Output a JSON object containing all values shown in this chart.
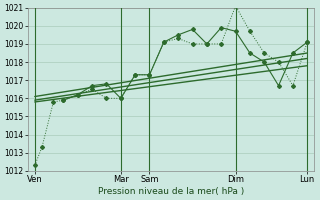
{
  "bg_color": "#cce8e0",
  "grid_color": "#aaccbb",
  "line_color": "#2d6b2d",
  "title": "Pression niveau de la mer( hPa )",
  "ylim": [
    1012,
    1021
  ],
  "yticks": [
    1012,
    1013,
    1014,
    1015,
    1016,
    1017,
    1018,
    1019,
    1020,
    1021
  ],
  "xlim": [
    0,
    20
  ],
  "xtick_labels": [
    "Ven",
    "Mar",
    "Sam",
    "Dim",
    "Lun"
  ],
  "xtick_pos": [
    0.5,
    6.5,
    8.5,
    14.5,
    19.5
  ],
  "vlines_x": [
    0.5,
    6.5,
    8.5,
    14.5,
    19.5
  ],
  "series1_x": [
    0.5,
    1.0,
    1.8,
    2.5,
    3.5,
    4.5,
    5.5,
    6.5,
    7.5,
    8.5,
    9.5,
    10.5,
    11.5,
    12.5,
    13.5,
    14.5,
    15.5,
    16.5,
    17.5,
    18.5,
    19.5
  ],
  "series1_y": [
    1012.3,
    1013.3,
    1015.8,
    1015.9,
    1016.2,
    1016.5,
    1016.0,
    1016.0,
    1017.3,
    1017.3,
    1019.1,
    1019.3,
    1019.0,
    1019.0,
    1019.0,
    1021.1,
    1019.7,
    1018.5,
    1018.0,
    1016.7,
    1019.1
  ],
  "series2_x": [
    2.5,
    3.5,
    4.5,
    5.5,
    6.5,
    7.5,
    8.5,
    9.5,
    10.5,
    11.5,
    12.5,
    13.5,
    14.5,
    15.5,
    16.5,
    17.5,
    18.5,
    19.5
  ],
  "series2_y": [
    1015.9,
    1016.2,
    1016.7,
    1016.8,
    1016.0,
    1017.3,
    1017.3,
    1019.1,
    1019.5,
    1019.8,
    1019.0,
    1019.9,
    1019.7,
    1018.5,
    1018.0,
    1016.7,
    1018.5,
    1019.1
  ],
  "trend1_x": [
    0.5,
    19.5
  ],
  "trend1_y": [
    1015.8,
    1017.8
  ],
  "trend2_x": [
    0.5,
    19.5
  ],
  "trend2_y": [
    1015.9,
    1018.2
  ],
  "trend3_x": [
    0.5,
    19.5
  ],
  "trend3_y": [
    1016.1,
    1018.5
  ]
}
